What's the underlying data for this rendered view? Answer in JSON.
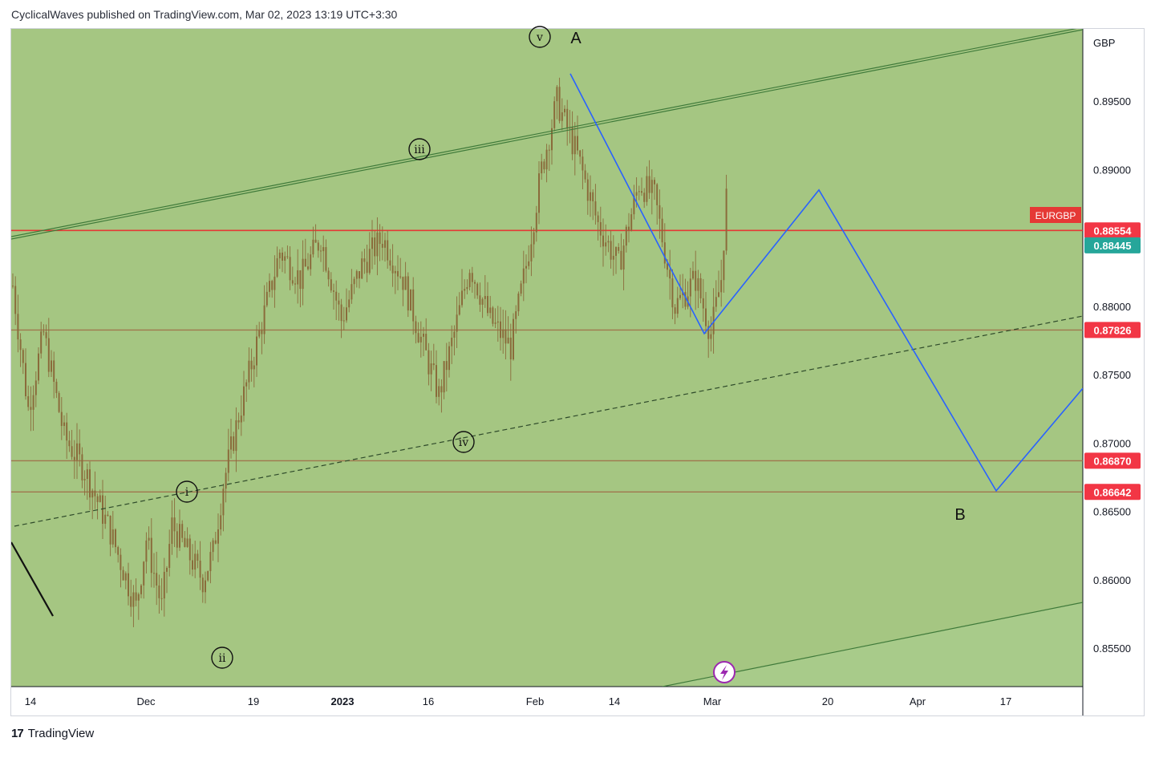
{
  "header": {
    "publisher_line": "CyclicalWaves published on TradingView.com, Mar 02, 2023 13:19 UTC+3:30"
  },
  "footer": {
    "brand": "TradingView",
    "logo_glyph": "17"
  },
  "colors": {
    "pane_bg": "#a5c682",
    "pane_bg_lower": "#a8cb8a",
    "channel_line": "#3f7a3a",
    "projection": "#2962ff",
    "hline_red": "#e53935",
    "hline_brown": "#a0764e",
    "candle": "#8a6b3b",
    "symbol_tag": "#e53935",
    "last_price_tag": "#26a69a",
    "lightning": "#9c27b0"
  },
  "chart_data": {
    "type": "candlestick",
    "symbol": "EURGBP",
    "currency": "GBP",
    "y_ticks": [
      "0.89500",
      "0.89000",
      "0.88000",
      "0.87500",
      "0.87000",
      "0.86500",
      "0.86000",
      "0.85500"
    ],
    "x_ticks": [
      "14",
      "Dec",
      "19",
      "2023",
      "16",
      "Feb",
      "14",
      "Mar",
      "20",
      "Apr",
      "17"
    ],
    "price_tags": [
      {
        "label": "0.88554",
        "type": "line-red"
      },
      {
        "label": "0.88445",
        "type": "last-price"
      },
      {
        "label": "0.87826",
        "type": "line"
      },
      {
        "label": "0.86870",
        "type": "line"
      },
      {
        "label": "0.86642",
        "type": "line"
      }
    ],
    "horizontal_levels": [
      0.88554,
      0.87826,
      0.8687,
      0.86642
    ],
    "wave_labels": [
      "v",
      "A",
      "iii",
      "iv",
      "i",
      "ii",
      "B"
    ],
    "price_path": [
      {
        "i": 0,
        "p": 0.8815
      },
      {
        "i": 6,
        "p": 0.8725
      },
      {
        "i": 12,
        "p": 0.878
      },
      {
        "i": 20,
        "p": 0.8705
      },
      {
        "i": 28,
        "p": 0.868
      },
      {
        "i": 38,
        "p": 0.8635
      },
      {
        "i": 48,
        "p": 0.858
      },
      {
        "i": 52,
        "p": 0.863
      },
      {
        "i": 58,
        "p": 0.858
      },
      {
        "i": 62,
        "p": 0.864
      },
      {
        "i": 68,
        "p": 0.862
      },
      {
        "i": 74,
        "p": 0.86
      },
      {
        "i": 78,
        "p": 0.862
      },
      {
        "i": 82,
        "p": 0.867
      },
      {
        "i": 88,
        "p": 0.872
      },
      {
        "i": 96,
        "p": 0.878
      },
      {
        "i": 104,
        "p": 0.884
      },
      {
        "i": 112,
        "p": 0.882
      },
      {
        "i": 120,
        "p": 0.885
      },
      {
        "i": 128,
        "p": 0.879
      },
      {
        "i": 136,
        "p": 0.883
      },
      {
        "i": 144,
        "p": 0.885
      },
      {
        "i": 152,
        "p": 0.882
      },
      {
        "i": 160,
        "p": 0.877
      },
      {
        "i": 166,
        "p": 0.8735
      },
      {
        "i": 172,
        "p": 0.878
      },
      {
        "i": 178,
        "p": 0.883
      },
      {
        "i": 186,
        "p": 0.879
      },
      {
        "i": 194,
        "p": 0.877
      },
      {
        "i": 200,
        "p": 0.883
      },
      {
        "i": 206,
        "p": 0.89
      },
      {
        "i": 212,
        "p": 0.895
      },
      {
        "i": 220,
        "p": 0.891
      },
      {
        "i": 228,
        "p": 0.886
      },
      {
        "i": 236,
        "p": 0.883
      },
      {
        "i": 244,
        "p": 0.889
      },
      {
        "i": 250,
        "p": 0.888
      },
      {
        "i": 258,
        "p": 0.88
      },
      {
        "i": 266,
        "p": 0.882
      },
      {
        "i": 272,
        "p": 0.878
      },
      {
        "i": 276,
        "p": 0.882
      },
      {
        "i": 278,
        "p": 0.888
      }
    ],
    "projection_path": [
      0.897,
      0.878,
      0.8885,
      0.8665,
      0.874
    ]
  }
}
